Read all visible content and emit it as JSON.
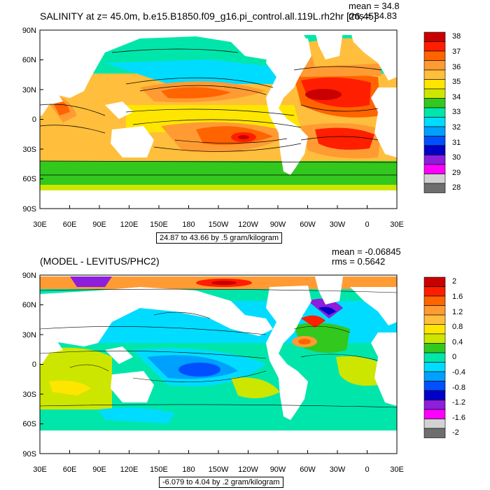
{
  "panels": [
    {
      "title": "SALINITY at z=  45.0m, b.e15.B1850.f09_g16.pi_control.all.119L.rh2hr [26,45]",
      "mean_text": "mean = 34.8",
      "rms_text": "rms = 34.83",
      "caption": "24.87 to 43.66 by .5 gram/kilogram",
      "lat_labels": [
        "90N",
        "60N",
        "30N",
        "0",
        "30S",
        "60S",
        "90S"
      ],
      "lon_labels": [
        "30E",
        "60E",
        "90E",
        "120E",
        "150E",
        "180",
        "150W",
        "120W",
        "90W",
        "60W",
        "30W",
        "0",
        "30E"
      ],
      "colorbar_labels": [
        "38",
        "37",
        "36",
        "35",
        "34",
        "33",
        "32",
        "31",
        "30",
        "29",
        "28"
      ],
      "colorbar_colors": [
        "#c80000",
        "#ff1e00",
        "#ff6400",
        "#ff9b32",
        "#ffbe3c",
        "#ffe600",
        "#cde600",
        "#32c81e",
        "#00e6aa",
        "#00dcff",
        "#00a0ff",
        "#0050ff",
        "#0000c8",
        "#8c1edc",
        "#ff00ff",
        "#d2d2d2",
        "#6e6e6e"
      ]
    },
    {
      "title": "(MODEL - LEVITUS/PHC2)",
      "mean_text": "mean = -0.06845",
      "rms_text": "rms = 0.5642",
      "caption": "-6.079 to 4.04 by .2 gram/kilogram",
      "lat_labels": [
        "90N",
        "60N",
        "30N",
        "0",
        "30S",
        "60S",
        "90S"
      ],
      "lon_labels": [
        "30E",
        "60E",
        "90E",
        "120E",
        "150E",
        "180",
        "150W",
        "120W",
        "90W",
        "60W",
        "30W",
        "0",
        "30E"
      ],
      "colorbar_labels": [
        "2",
        "1.6",
        "1.2",
        "0.8",
        "0.4",
        "0",
        "-0.4",
        "-0.8",
        "-1.2",
        "-1.6",
        "-2"
      ],
      "colorbar_colors": [
        "#c80000",
        "#ff1e00",
        "#ff6400",
        "#ff9b32",
        "#ffbe3c",
        "#ffe600",
        "#cde600",
        "#32c81e",
        "#00e6aa",
        "#00dcff",
        "#00a0ff",
        "#0050ff",
        "#0000c8",
        "#8c1edc",
        "#ff00ff",
        "#d2d2d2",
        "#6e6e6e"
      ]
    }
  ]
}
